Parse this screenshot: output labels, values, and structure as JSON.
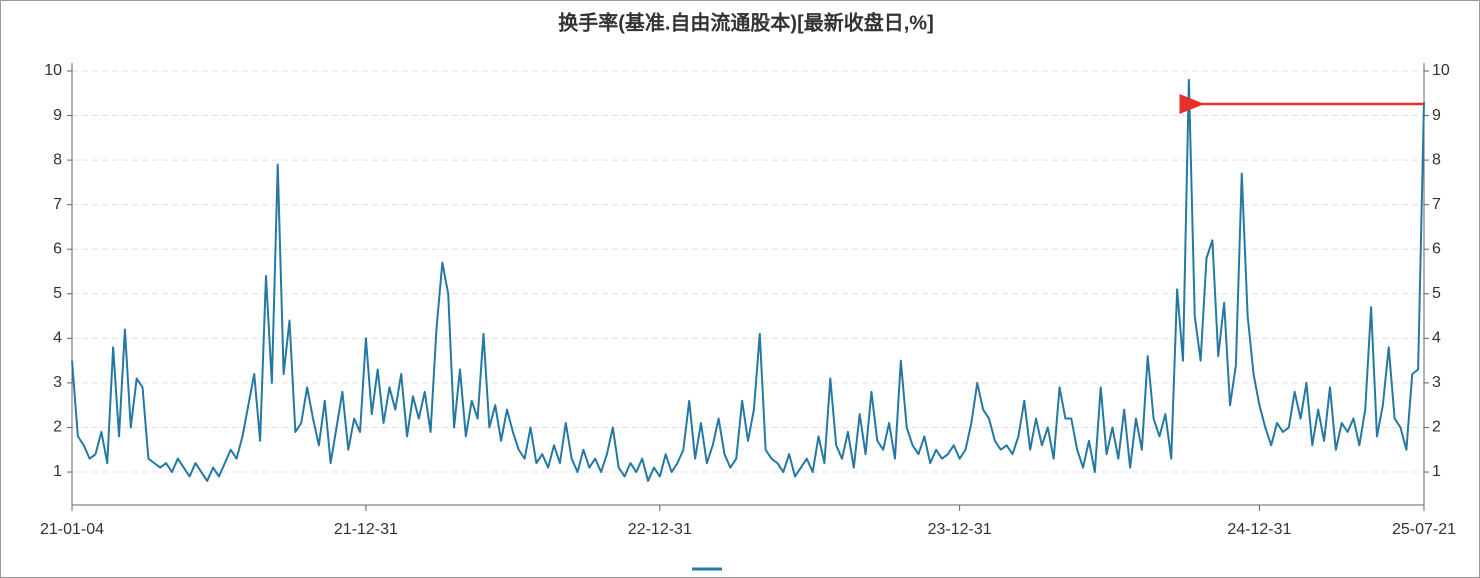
{
  "chart_data": {
    "type": "line",
    "title": "换手率(基准.自由流通股本)[最新收盘日,%]",
    "categories": [
      "21-01-04",
      null,
      null,
      null,
      null,
      null,
      null,
      null,
      null,
      null,
      null,
      null,
      null,
      null,
      null,
      null,
      null,
      null,
      null,
      null,
      null,
      null,
      null,
      null,
      null,
      null,
      null,
      null,
      null,
      null,
      null,
      null,
      null,
      null,
      null,
      null,
      null,
      null,
      null,
      null,
      null,
      null,
      null,
      null,
      null,
      null,
      null,
      null,
      null,
      null,
      "21-12-31",
      null,
      null,
      null,
      null,
      null,
      null,
      null,
      null,
      null,
      null,
      null,
      null,
      null,
      null,
      null,
      null,
      null,
      null,
      null,
      null,
      null,
      null,
      null,
      null,
      null,
      null,
      null,
      null,
      null,
      null,
      null,
      null,
      null,
      null,
      null,
      null,
      null,
      null,
      null,
      null,
      null,
      null,
      null,
      null,
      null,
      null,
      null,
      null,
      null,
      "22-12-31",
      null,
      null,
      null,
      null,
      null,
      null,
      null,
      null,
      null,
      null,
      null,
      null,
      null,
      null,
      null,
      null,
      null,
      null,
      null,
      null,
      null,
      null,
      null,
      null,
      null,
      null,
      null,
      null,
      null,
      null,
      null,
      null,
      null,
      null,
      null,
      null,
      null,
      null,
      null,
      null,
      null,
      null,
      null,
      null,
      null,
      null,
      null,
      null,
      null,
      null,
      "23-12-31",
      null,
      null,
      null,
      null,
      null,
      null,
      null,
      null,
      null,
      null,
      null,
      null,
      null,
      null,
      null,
      null,
      null,
      null,
      null,
      null,
      null,
      null,
      null,
      null,
      null,
      null,
      null,
      null,
      null,
      null,
      null,
      null,
      null,
      null,
      null,
      null,
      null,
      null,
      null,
      null,
      null,
      null,
      null,
      null,
      null,
      null,
      null,
      null,
      null,
      null,
      "24-12-31",
      null,
      null,
      null,
      null,
      null,
      null,
      null,
      null,
      null,
      null,
      null,
      null,
      null,
      null,
      null,
      null,
      null,
      null,
      null,
      null,
      null,
      null,
      null,
      null,
      null,
      null,
      null,
      "25-07-21"
    ],
    "values": [
      3.5,
      1.8,
      1.6,
      1.3,
      1.4,
      1.9,
      1.2,
      3.8,
      1.8,
      4.2,
      2.0,
      3.1,
      2.9,
      1.3,
      1.2,
      1.1,
      1.2,
      1.0,
      1.3,
      1.1,
      0.9,
      1.2,
      1.0,
      0.8,
      1.1,
      0.9,
      1.2,
      1.5,
      1.3,
      1.8,
      2.5,
      3.2,
      1.7,
      5.4,
      3.0,
      7.9,
      3.2,
      4.4,
      1.9,
      2.1,
      2.9,
      2.2,
      1.6,
      2.6,
      1.2,
      2.0,
      2.8,
      1.5,
      2.2,
      1.9,
      4.0,
      2.3,
      3.3,
      2.1,
      2.9,
      2.4,
      3.2,
      1.8,
      2.7,
      2.2,
      2.8,
      1.9,
      4.2,
      5.7,
      5.0,
      2.0,
      3.3,
      1.8,
      2.6,
      2.2,
      4.1,
      2.0,
      2.5,
      1.7,
      2.4,
      1.9,
      1.5,
      1.3,
      2.0,
      1.2,
      1.4,
      1.1,
      1.6,
      1.2,
      2.1,
      1.3,
      1.0,
      1.5,
      1.1,
      1.3,
      1.0,
      1.4,
      2.0,
      1.1,
      0.9,
      1.2,
      1.0,
      1.3,
      0.8,
      1.1,
      0.9,
      1.4,
      1.0,
      1.2,
      1.5,
      2.6,
      1.3,
      2.1,
      1.2,
      1.6,
      2.2,
      1.4,
      1.1,
      1.3,
      2.6,
      1.7,
      2.4,
      4.1,
      1.5,
      1.3,
      1.2,
      1.0,
      1.4,
      0.9,
      1.1,
      1.3,
      1.0,
      1.8,
      1.2,
      3.1,
      1.6,
      1.3,
      1.9,
      1.1,
      2.3,
      1.4,
      2.8,
      1.7,
      1.5,
      2.1,
      1.3,
      3.5,
      2.0,
      1.6,
      1.4,
      1.8,
      1.2,
      1.5,
      1.3,
      1.4,
      1.6,
      1.3,
      1.5,
      2.1,
      3.0,
      2.4,
      2.2,
      1.7,
      1.5,
      1.6,
      1.4,
      1.8,
      2.6,
      1.5,
      2.2,
      1.6,
      2.0,
      1.3,
      2.9,
      2.2,
      2.2,
      1.5,
      1.1,
      1.7,
      1.0,
      2.9,
      1.4,
      2.0,
      1.3,
      2.4,
      1.1,
      2.2,
      1.5,
      3.6,
      2.2,
      1.8,
      2.3,
      1.3,
      5.1,
      3.5,
      9.8,
      4.5,
      3.5,
      5.8,
      6.2,
      3.6,
      4.8,
      2.5,
      3.4,
      7.7,
      4.5,
      3.2,
      2.5,
      2.0,
      1.6,
      2.1,
      1.9,
      2.0,
      2.8,
      2.2,
      3.0,
      1.6,
      2.4,
      1.7,
      2.9,
      1.5,
      2.1,
      1.9,
      2.2,
      1.6,
      2.4,
      4.7,
      1.8,
      2.5,
      3.8,
      2.2,
      2.0,
      1.5,
      3.2,
      3.3,
      9.3
    ],
    "color": "#2578a3",
    "ylim": [
      0.26,
      10
    ],
    "yticks": [
      1,
      2,
      3,
      4,
      5,
      6,
      7,
      8,
      9,
      10
    ],
    "y2lim": [
      0.26,
      10
    ],
    "y2ticks": [
      1,
      2,
      3,
      4,
      5,
      6,
      7,
      8,
      9,
      10
    ],
    "grid": true
  }
}
